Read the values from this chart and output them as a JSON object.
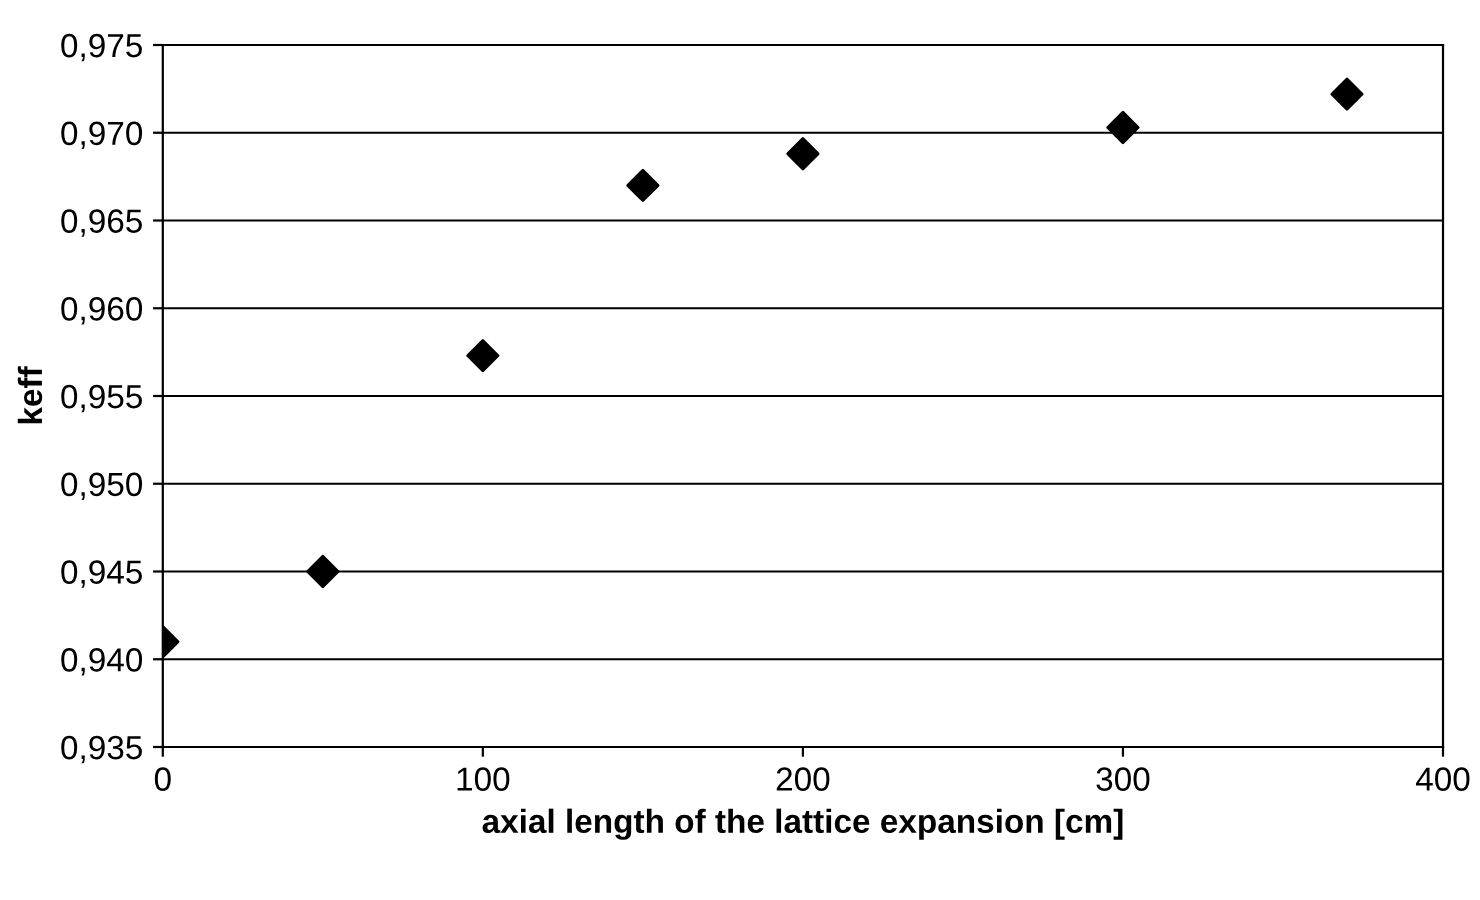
{
  "chart_data": {
    "type": "scatter",
    "xlabel": "axial length of the lattice expansion [cm]",
    "ylabel": "keff",
    "x": [
      0,
      50,
      100,
      150,
      200,
      300,
      370
    ],
    "series": [
      {
        "color": "#000000",
        "values": [
          0.941,
          0.945,
          0.9573,
          0.967,
          0.9688,
          0.9703,
          0.9722
        ]
      }
    ],
    "marker": "diamond",
    "grid": "y",
    "legend": false,
    "xlim": [
      0,
      400
    ],
    "xticks": [
      0,
      100,
      200,
      300,
      400
    ],
    "ylim": [
      0.935,
      0.975
    ],
    "yticks": [
      {
        "value": 0.935,
        "label": "0,935"
      },
      {
        "value": 0.94,
        "label": "0,940"
      },
      {
        "value": 0.945,
        "label": "0,945"
      },
      {
        "value": 0.95,
        "label": "0,950"
      },
      {
        "value": 0.955,
        "label": "0,955"
      },
      {
        "value": 0.96,
        "label": "0,960"
      },
      {
        "value": 0.965,
        "label": "0,965"
      },
      {
        "value": 0.97,
        "label": "0,970"
      },
      {
        "value": 0.975,
        "label": "0,975"
      }
    ]
  }
}
